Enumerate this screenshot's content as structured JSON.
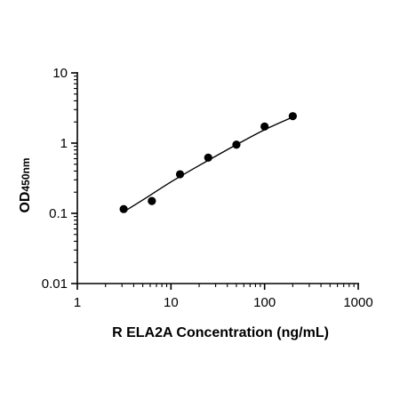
{
  "chart_data": {
    "type": "scatter",
    "xscale": "log",
    "yscale": "log",
    "xlabel": "R ELA2A Concentration (ng/mL)",
    "ylabel": "OD",
    "ylabel_subscript": "450nm",
    "xlim": [
      1,
      1000
    ],
    "ylim": [
      0.01,
      10
    ],
    "xticks": [
      1,
      10,
      100,
      1000
    ],
    "xtick_labels": [
      "1",
      "10",
      "100",
      "1000"
    ],
    "yticks": [
      0.01,
      0.1,
      1,
      10
    ],
    "ytick_labels": [
      "0.01",
      "0.1",
      "1",
      "10"
    ],
    "grid": false,
    "series": [
      {
        "x": [
          3.125,
          6.25,
          12.5,
          25,
          50,
          100,
          200
        ],
        "y": [
          0.115,
          0.15,
          0.36,
          0.62,
          0.95,
          1.72,
          2.42
        ],
        "marker": "circle",
        "color": "#000000"
      }
    ],
    "fit_curve": {
      "x": [
        3.125,
        5,
        10,
        20,
        50,
        100,
        200
      ],
      "y": [
        0.105,
        0.155,
        0.28,
        0.48,
        0.95,
        1.55,
        2.35
      ],
      "color": "#000000"
    }
  }
}
